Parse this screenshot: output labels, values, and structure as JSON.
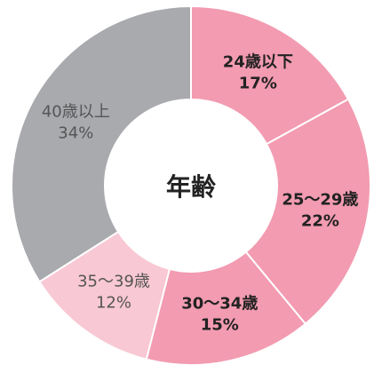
{
  "chart_data": {
    "type": "donut",
    "title": "年齢",
    "categories": [
      "24歳以下",
      "25〜29歳",
      "30〜34歳",
      "35〜39歳",
      "40歳以上"
    ],
    "values": [
      17,
      22,
      15,
      12,
      34
    ],
    "value_labels": [
      "17%",
      "22%",
      "15%",
      "12%",
      "34%"
    ],
    "colors": [
      "#f29bb1",
      "#f29bb1",
      "#f29bb1",
      "#f8c8d4",
      "#a9aaae"
    ]
  }
}
